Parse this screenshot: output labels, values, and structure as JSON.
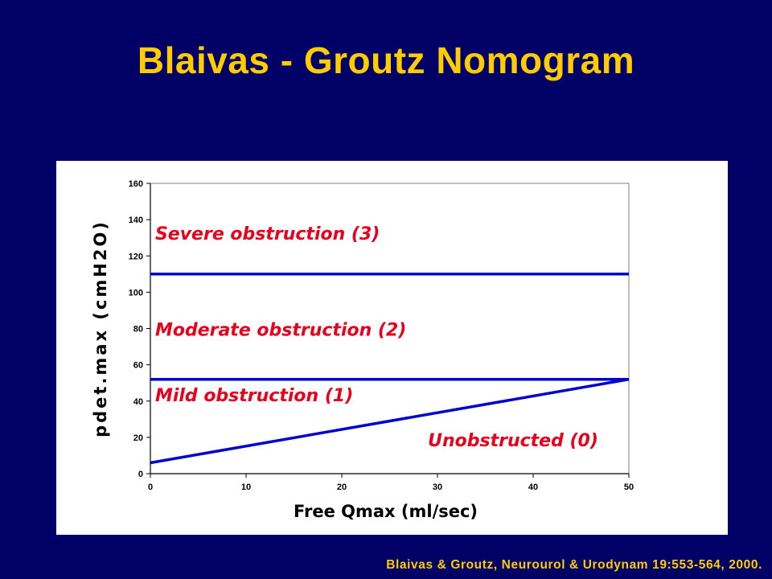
{
  "slide": {
    "title": "Blaivas - Groutz Nomogram",
    "citation": "Blaivas & Groutz, Neurourol & Urodynam 19:553-564, 2000."
  },
  "colors": {
    "background": "#000066",
    "title": "#FFCC00",
    "line": "#0000CC",
    "region_label": "#E8001C"
  },
  "chart_data": {
    "type": "line",
    "title": "",
    "xlabel": "Free Qmax (ml/sec)",
    "ylabel": "pdet.max (cmH2O)",
    "xlim": [
      0,
      50
    ],
    "ylim": [
      0,
      160
    ],
    "x_ticks": [
      "0",
      "10",
      "20",
      "30",
      "40",
      "50"
    ],
    "y_ticks": [
      "0",
      "20",
      "40",
      "60",
      "80",
      "100",
      "120",
      "140",
      "160"
    ],
    "grid": false,
    "legend": "none",
    "series": [
      {
        "points": [
          [
            0,
            110
          ],
          [
            50,
            110
          ]
        ]
      },
      {
        "points": [
          [
            0,
            52
          ],
          [
            50,
            52
          ]
        ]
      },
      {
        "points": [
          [
            0,
            6
          ],
          [
            50,
            52
          ]
        ]
      }
    ],
    "annotations": [
      {
        "text": "Severe obstruction (3)",
        "x": 0.5,
        "y": 129
      },
      {
        "text": "Moderate obstruction (2)",
        "x": 0.5,
        "y": 76
      },
      {
        "text": "Mild obstruction (1)",
        "x": 0.5,
        "y": 40
      },
      {
        "text": "Unobstructed (0)",
        "x": 29,
        "y": 15
      }
    ]
  }
}
